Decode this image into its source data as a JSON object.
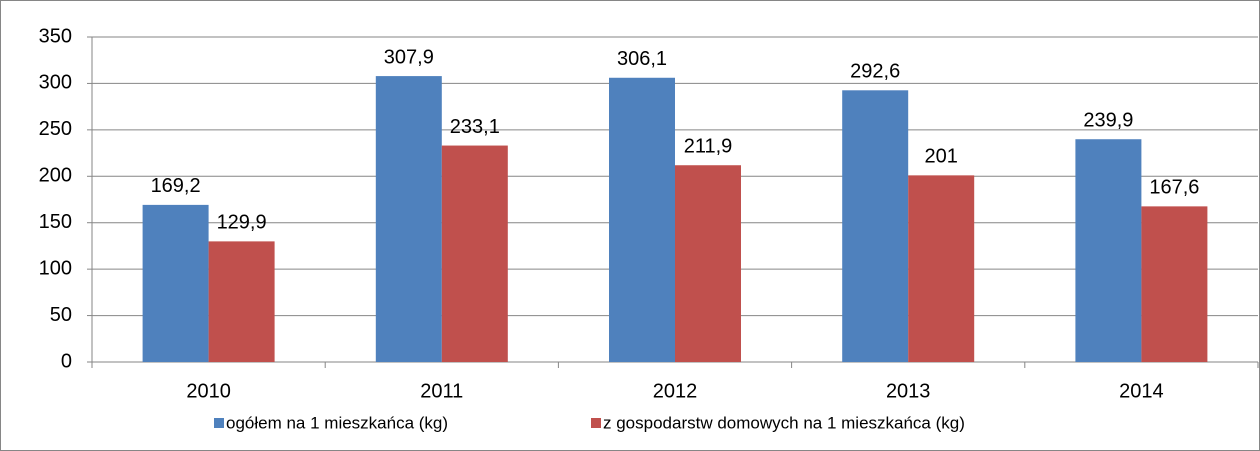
{
  "chart_data": {
    "type": "bar",
    "categories": [
      "2010",
      "2011",
      "2012",
      "2013",
      "2014"
    ],
    "series": [
      {
        "name": "ogółem na 1 mieszkańca (kg)",
        "color": "#4f81bd",
        "values": [
          169.2,
          307.9,
          306.1,
          292.6,
          239.9
        ],
        "value_labels": [
          "169,2",
          "307,9",
          "306,1",
          "292,6",
          "239,9"
        ]
      },
      {
        "name": "z gospodarstw domowych na 1 mieszkańca (kg)",
        "color": "#c0504d",
        "values": [
          129.9,
          233.1,
          211.9,
          201,
          167.6
        ],
        "value_labels": [
          "129,9",
          "233,1",
          "211,9",
          "201",
          "167,6"
        ]
      }
    ],
    "ylim": [
      0,
      350
    ],
    "yticks": [
      0,
      50,
      100,
      150,
      200,
      250,
      300,
      350
    ],
    "grid": true,
    "legend": "bottom"
  }
}
